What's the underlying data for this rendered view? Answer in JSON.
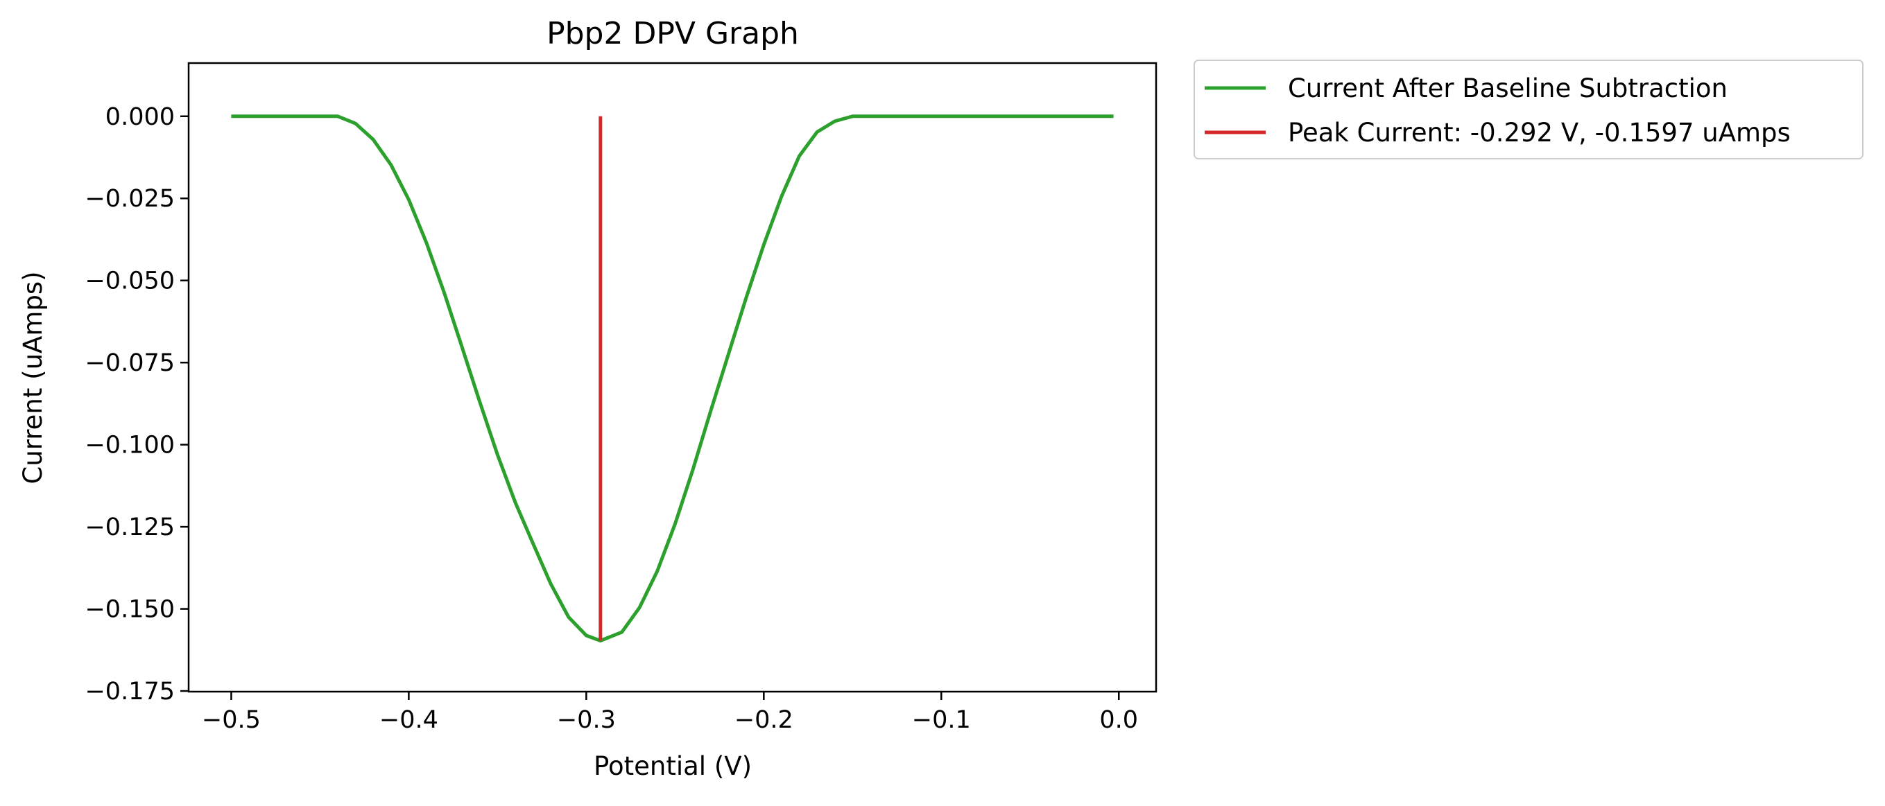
{
  "chart_data": {
    "type": "line",
    "title": "Pbp2 DPV Graph",
    "xlabel": "Potential (V)",
    "ylabel": "Current (uAmps)",
    "xlim": [
      -0.524,
      0.021
    ],
    "ylim": [
      -0.1752,
      0.0162
    ],
    "xticks": [
      -0.5,
      -0.4,
      -0.3,
      -0.2,
      -0.1,
      0.0
    ],
    "xtick_labels": [
      "−0.5",
      "−0.4",
      "−0.3",
      "−0.2",
      "−0.1",
      "0.0"
    ],
    "yticks": [
      0.0,
      -0.025,
      -0.05,
      -0.075,
      -0.1,
      -0.125,
      -0.15,
      -0.175
    ],
    "ytick_labels": [
      "0.000",
      "−0.025",
      "−0.050",
      "−0.075",
      "−0.100",
      "−0.125",
      "−0.150",
      "−0.175"
    ],
    "grid": false,
    "legend_position": "outside-top-right",
    "series": [
      {
        "name": "Current After Baseline Subtraction",
        "color": "#2ca02c",
        "x": [
          -0.5,
          -0.44,
          -0.43,
          -0.42,
          -0.41,
          -0.4,
          -0.39,
          -0.38,
          -0.37,
          -0.36,
          -0.35,
          -0.34,
          -0.33,
          -0.32,
          -0.31,
          -0.3,
          -0.292,
          -0.28,
          -0.27,
          -0.26,
          -0.25,
          -0.24,
          -0.23,
          -0.22,
          -0.21,
          -0.2,
          -0.19,
          -0.18,
          -0.17,
          -0.16,
          -0.15,
          -0.003
        ],
        "y": [
          0.0,
          0.0,
          -0.0022,
          -0.0071,
          -0.0148,
          -0.0254,
          -0.0386,
          -0.0538,
          -0.0703,
          -0.087,
          -0.1031,
          -0.1176,
          -0.1301,
          -0.1424,
          -0.1525,
          -0.1581,
          -0.1597,
          -0.1571,
          -0.1496,
          -0.1385,
          -0.1242,
          -0.1077,
          -0.0899,
          -0.0726,
          -0.0554,
          -0.0391,
          -0.0244,
          -0.0121,
          -0.0048,
          -0.0015,
          0.0,
          0.0
        ]
      },
      {
        "name": "Peak Current: -0.292 V, -0.1597 uAmps",
        "color": "#d62728",
        "x": [
          -0.292,
          -0.292
        ],
        "y": [
          0.0,
          -0.1597
        ]
      }
    ]
  }
}
